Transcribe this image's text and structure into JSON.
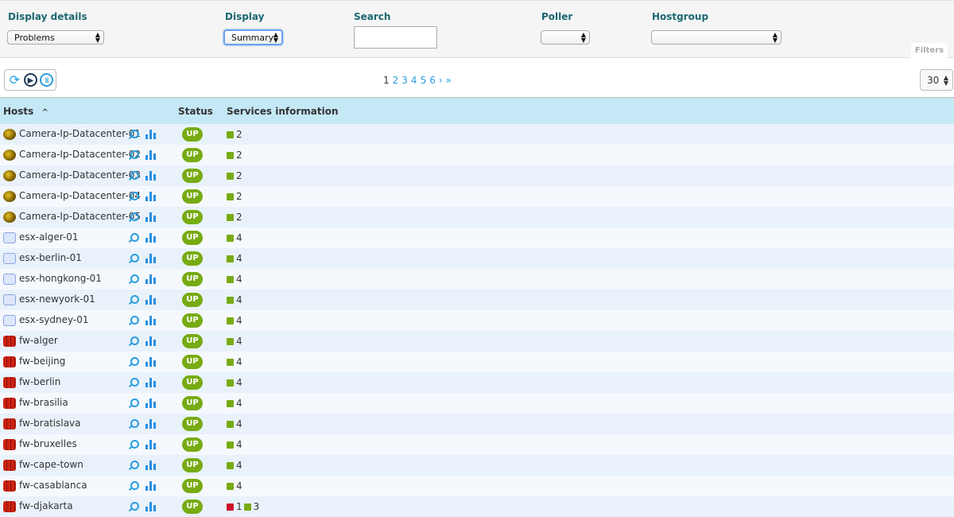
{
  "filters": {
    "display_details": {
      "label": "Display details",
      "value": "Problems"
    },
    "display": {
      "label": "Display",
      "value": "Summary"
    },
    "search": {
      "label": "Search",
      "value": ""
    },
    "poller": {
      "label": "Poller",
      "value": ""
    },
    "hostgroup": {
      "label": "Hostgroup",
      "value": ""
    },
    "tab_label": "Filters"
  },
  "toolbar": {
    "icons": [
      "refresh-icon",
      "play-icon",
      "pause-icon"
    ]
  },
  "pagination": {
    "current": "1",
    "pages": [
      "2",
      "3",
      "4",
      "5",
      "6"
    ],
    "next": "›",
    "last": "»"
  },
  "per_page": "30",
  "table": {
    "headers": {
      "hosts": "Hosts",
      "sort": "^",
      "status": "Status",
      "services": "Services information"
    },
    "colors": {
      "ok": "#77ab13",
      "critical": "#d0112b",
      "up": "#77ab13"
    },
    "rows": [
      {
        "icon": "camera",
        "name": "Camera-Ip-Datacenter-01",
        "status": "UP",
        "services": [
          {
            "state": "ok",
            "count": "2"
          }
        ]
      },
      {
        "icon": "camera",
        "name": "Camera-Ip-Datacenter-02",
        "status": "UP",
        "services": [
          {
            "state": "ok",
            "count": "2"
          }
        ]
      },
      {
        "icon": "camera",
        "name": "Camera-Ip-Datacenter-03",
        "status": "UP",
        "services": [
          {
            "state": "ok",
            "count": "2"
          }
        ]
      },
      {
        "icon": "camera",
        "name": "Camera-Ip-Datacenter-04",
        "status": "UP",
        "services": [
          {
            "state": "ok",
            "count": "2"
          }
        ]
      },
      {
        "icon": "camera",
        "name": "Camera-Ip-Datacenter-05",
        "status": "UP",
        "services": [
          {
            "state": "ok",
            "count": "2"
          }
        ]
      },
      {
        "icon": "esx",
        "name": "esx-alger-01",
        "status": "UP",
        "services": [
          {
            "state": "ok",
            "count": "4"
          }
        ]
      },
      {
        "icon": "esx",
        "name": "esx-berlin-01",
        "status": "UP",
        "services": [
          {
            "state": "ok",
            "count": "4"
          }
        ]
      },
      {
        "icon": "esx",
        "name": "esx-hongkong-01",
        "status": "UP",
        "services": [
          {
            "state": "ok",
            "count": "4"
          }
        ]
      },
      {
        "icon": "esx",
        "name": "esx-newyork-01",
        "status": "UP",
        "services": [
          {
            "state": "ok",
            "count": "4"
          }
        ]
      },
      {
        "icon": "esx",
        "name": "esx-sydney-01",
        "status": "UP",
        "services": [
          {
            "state": "ok",
            "count": "4"
          }
        ]
      },
      {
        "icon": "fw",
        "name": "fw-alger",
        "status": "UP",
        "services": [
          {
            "state": "ok",
            "count": "4"
          }
        ]
      },
      {
        "icon": "fw",
        "name": "fw-beijing",
        "status": "UP",
        "services": [
          {
            "state": "ok",
            "count": "4"
          }
        ]
      },
      {
        "icon": "fw",
        "name": "fw-berlin",
        "status": "UP",
        "services": [
          {
            "state": "ok",
            "count": "4"
          }
        ]
      },
      {
        "icon": "fw",
        "name": "fw-brasilia",
        "status": "UP",
        "services": [
          {
            "state": "ok",
            "count": "4"
          }
        ]
      },
      {
        "icon": "fw",
        "name": "fw-bratislava",
        "status": "UP",
        "services": [
          {
            "state": "ok",
            "count": "4"
          }
        ]
      },
      {
        "icon": "fw",
        "name": "fw-bruxelles",
        "status": "UP",
        "services": [
          {
            "state": "ok",
            "count": "4"
          }
        ]
      },
      {
        "icon": "fw",
        "name": "fw-cape-town",
        "status": "UP",
        "services": [
          {
            "state": "ok",
            "count": "4"
          }
        ]
      },
      {
        "icon": "fw",
        "name": "fw-casablanca",
        "status": "UP",
        "services": [
          {
            "state": "ok",
            "count": "4"
          }
        ]
      },
      {
        "icon": "fw",
        "name": "fw-djakarta",
        "status": "UP",
        "services": [
          {
            "state": "critical",
            "count": "1"
          },
          {
            "state": "ok",
            "count": "3"
          }
        ]
      }
    ]
  }
}
